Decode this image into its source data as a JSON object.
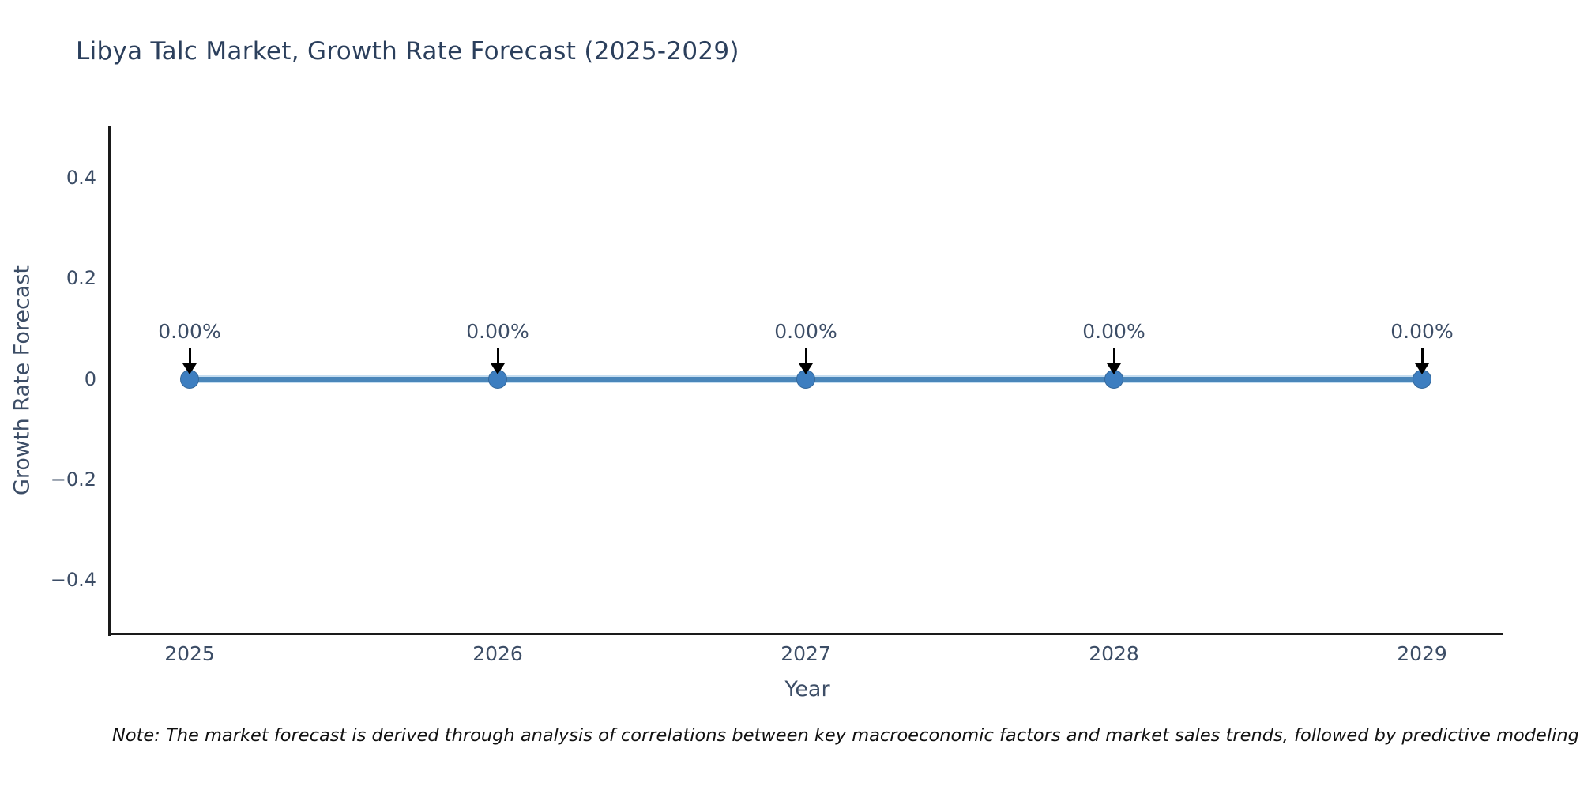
{
  "title": "Libya Talc Market, Growth Rate Forecast (2025-2029)",
  "note": "Note: The market forecast is derived through analysis of correlations between key macroeconomic factors and market sales trends, followed by predictive modeling to project future sales.",
  "colors": {
    "line": "#4a86ba",
    "marker": "#3d7ec0",
    "title_text": "#2b3f5c",
    "tick_text": "#3c4d66",
    "axis_line": "#1a1a1a",
    "annotation_arrow": "#000000",
    "background": "#ffffff"
  },
  "chart_data": {
    "type": "line",
    "title": "Libya Talc Market, Growth Rate Forecast (2025-2029)",
    "xlabel": "Year",
    "ylabel": "Growth Rate Forecast",
    "x": [
      2025,
      2026,
      2027,
      2028,
      2029
    ],
    "series": [
      {
        "name": "Growth Rate Forecast",
        "values": [
          0,
          0,
          0,
          0,
          0
        ]
      }
    ],
    "point_labels": [
      "0.00%",
      "0.00%",
      "0.00%",
      "0.00%",
      "0.00%"
    ],
    "ytick_labels": [
      "0.4",
      "0.2",
      "0",
      "−0.2",
      "−0.4"
    ],
    "yticks": [
      0.4,
      0.2,
      0,
      -0.2,
      -0.4
    ],
    "ylim": [
      -0.5,
      0.5
    ],
    "grid": false,
    "legend_position": "none",
    "marker_style": "circle",
    "annotation_arrows": true
  }
}
